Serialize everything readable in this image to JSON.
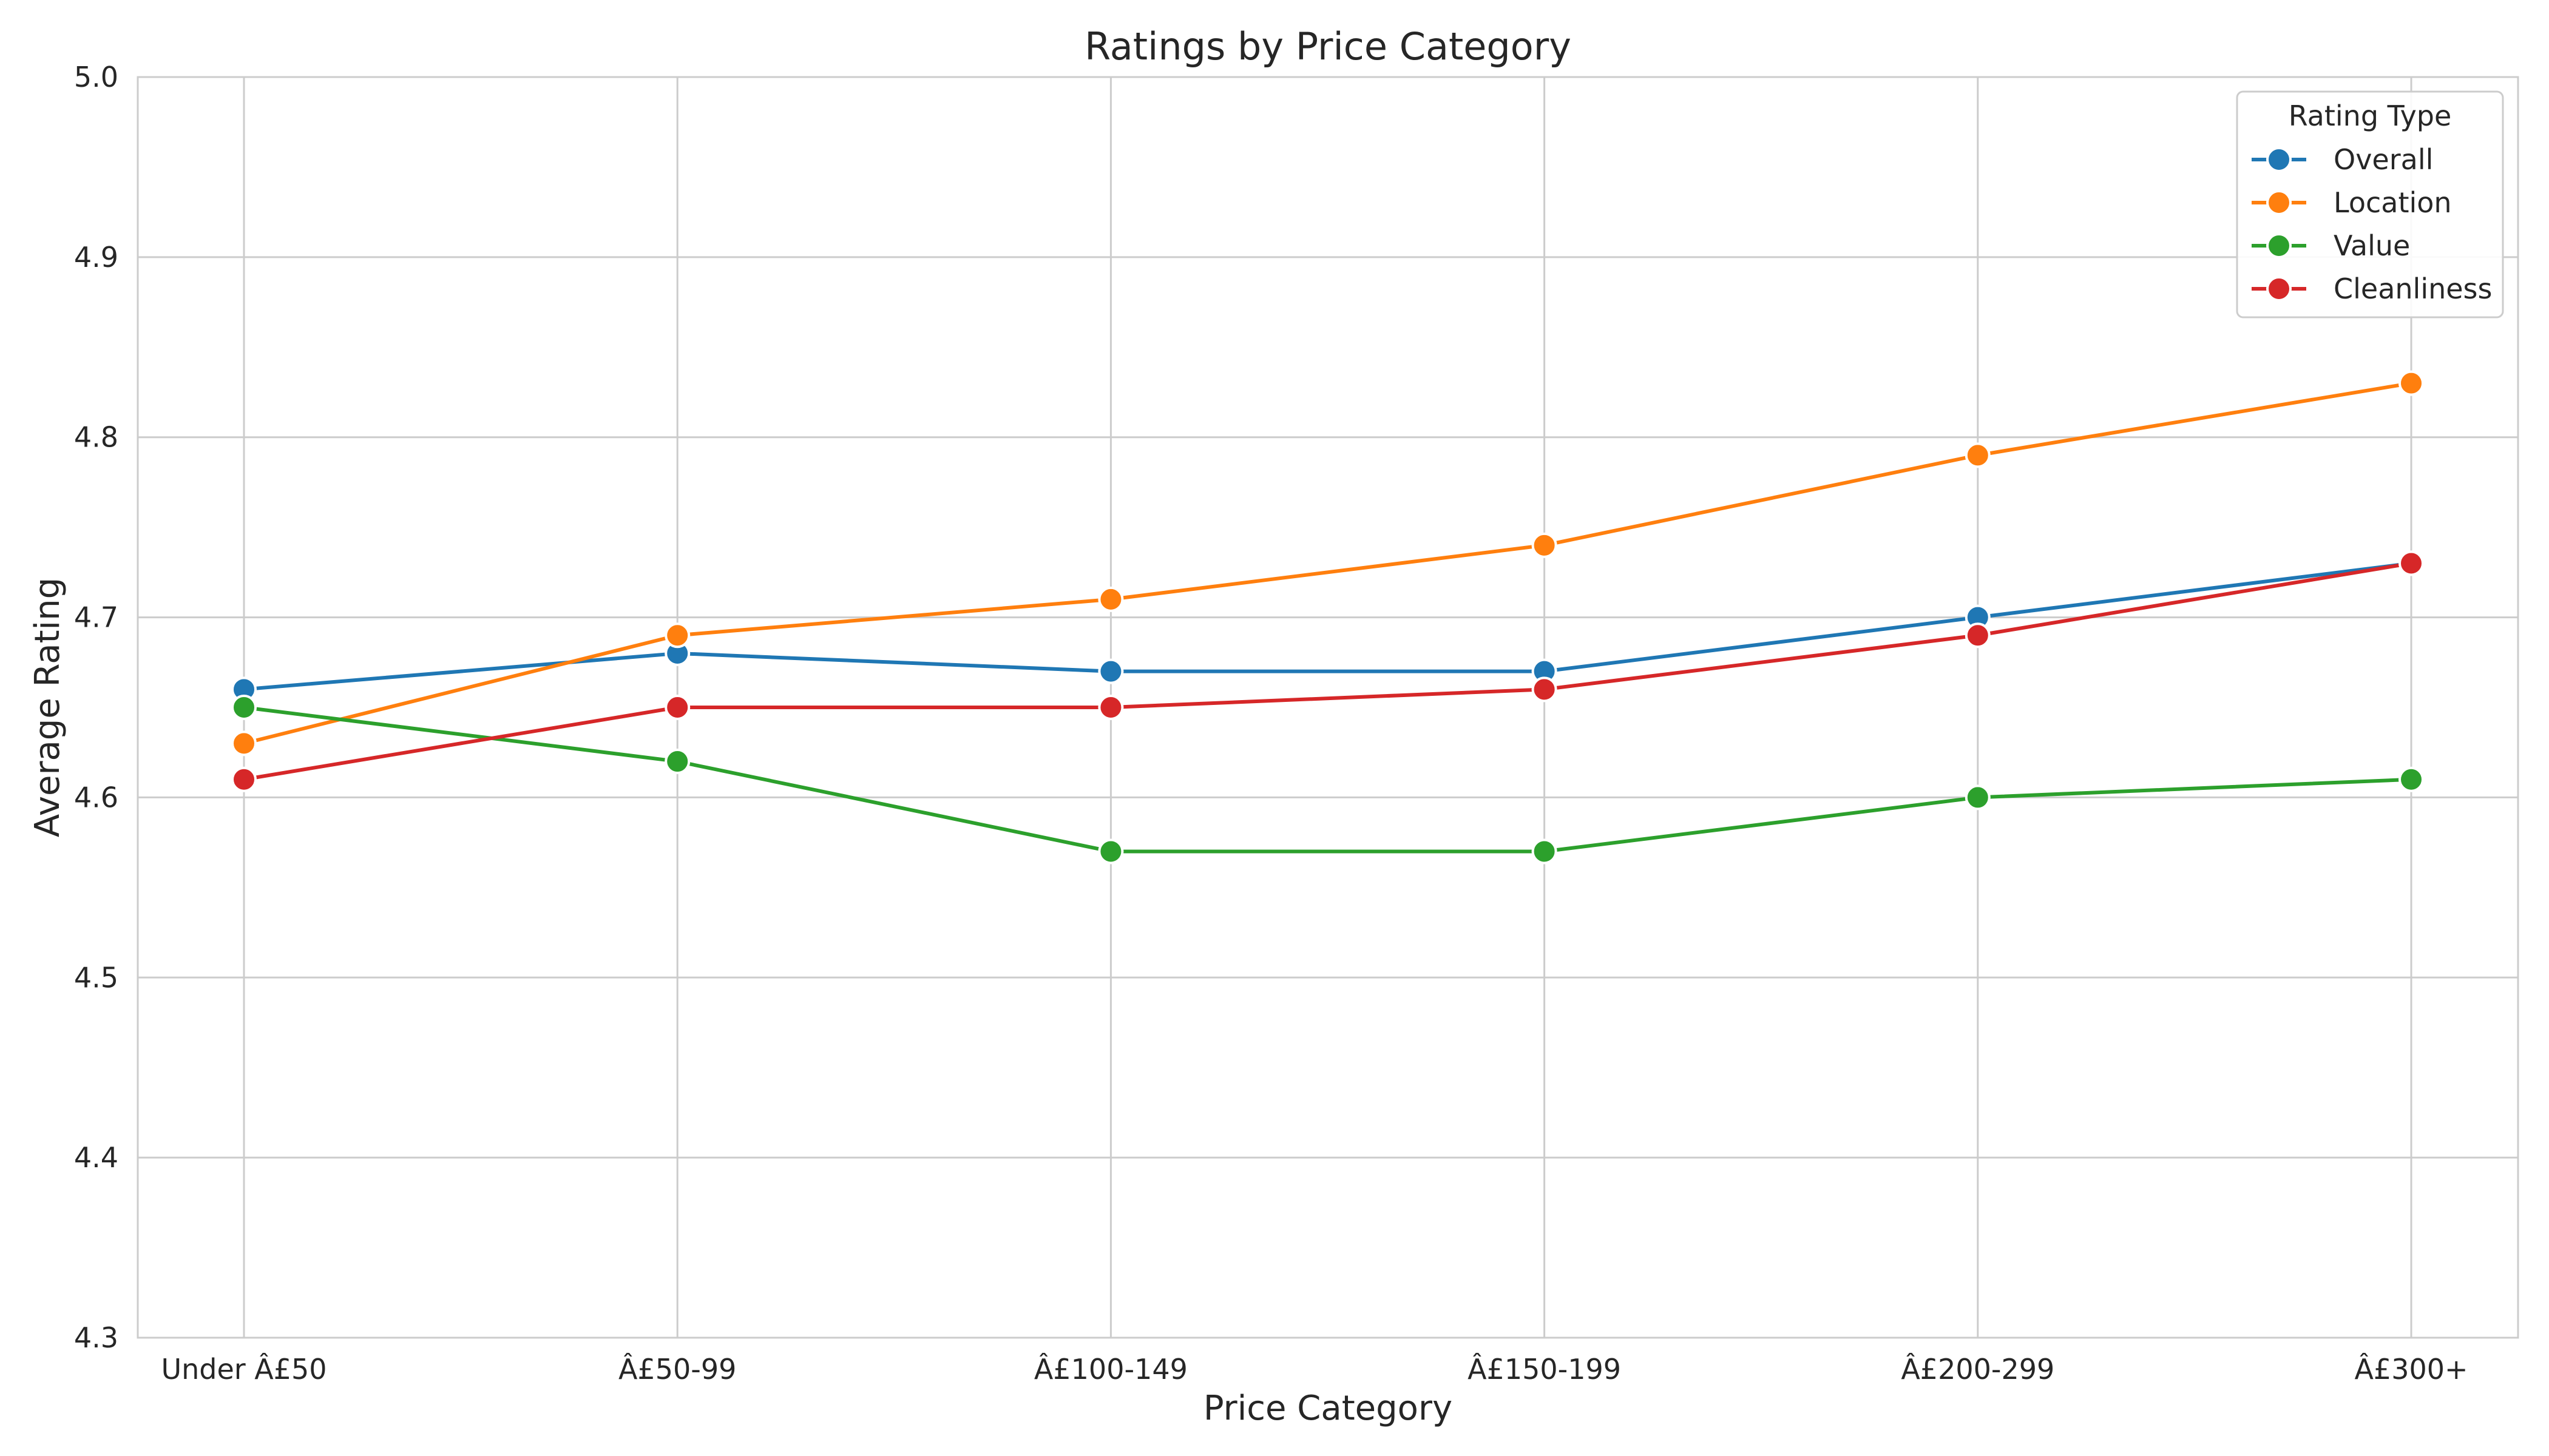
{
  "chart_data": {
    "type": "line",
    "title": "Ratings by Price Category",
    "xlabel": "Price Category",
    "ylabel": "Average Rating",
    "categories": [
      "Under Â£50",
      "Â£50-99",
      "Â£100-149",
      "Â£150-199",
      "Â£200-299",
      "Â£300+"
    ],
    "ylim": [
      4.3,
      5.0
    ],
    "yticks": [
      "4.3",
      "4.4",
      "4.5",
      "4.6",
      "4.7",
      "4.8",
      "4.9",
      "5.0"
    ],
    "grid": true,
    "legend": {
      "title": "Rating Type",
      "placement": "top-right"
    },
    "series": [
      {
        "name": "Overall",
        "color": "#1f77b4",
        "values": [
          4.66,
          4.68,
          4.67,
          4.67,
          4.7,
          4.73
        ]
      },
      {
        "name": "Location",
        "color": "#ff7f0e",
        "values": [
          4.63,
          4.69,
          4.71,
          4.74,
          4.79,
          4.83
        ]
      },
      {
        "name": "Value",
        "color": "#2ca02c",
        "values": [
          4.65,
          4.62,
          4.57,
          4.57,
          4.6,
          4.61
        ]
      },
      {
        "name": "Cleanliness",
        "color": "#d62728",
        "values": [
          4.61,
          4.65,
          4.65,
          4.66,
          4.69,
          4.73
        ]
      }
    ]
  }
}
